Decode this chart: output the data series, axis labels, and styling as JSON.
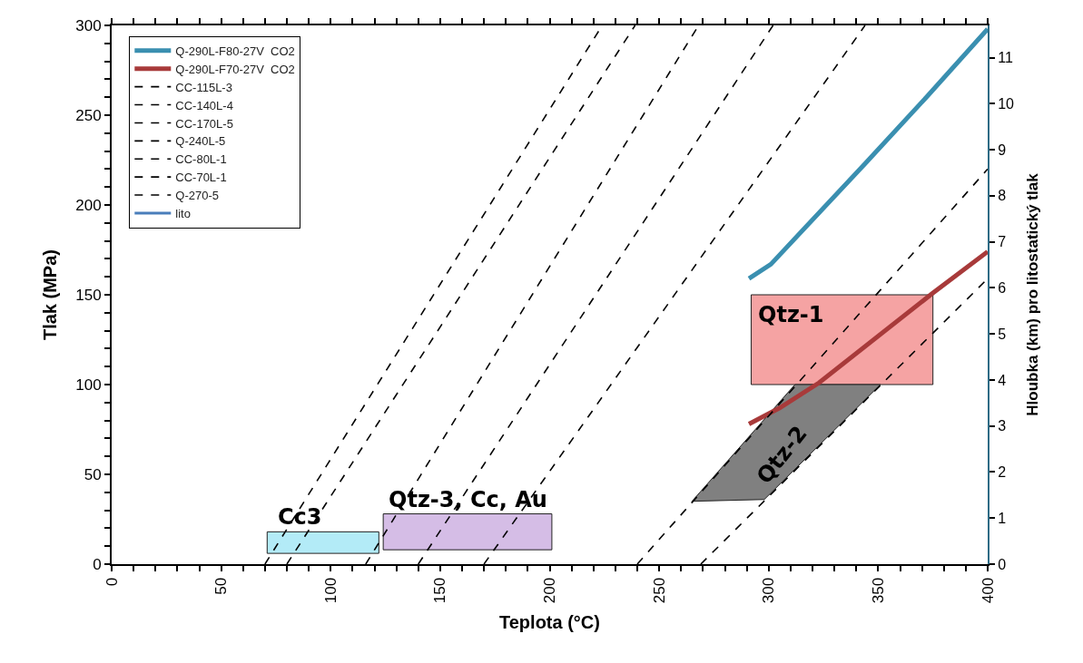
{
  "chart_data": {
    "type": "line",
    "xlabel": "Teplota (°C)",
    "ylabel": "Tlak (MPa)",
    "y2label": "Hloubka (km) pro litostatický tlak",
    "xlim": [
      0,
      400
    ],
    "ylim": [
      0,
      300
    ],
    "y2lim": [
      0,
      11.7
    ],
    "xticks": [
      0,
      {
        "value": 10,
        "label": null
      },
      {
        "value": 20,
        "label": null
      },
      {
        "value": 30,
        "label": null
      },
      {
        "value": 40,
        "label": null
      },
      50,
      {
        "value": 60,
        "label": null
      },
      {
        "value": 70,
        "label": null
      },
      {
        "value": 80,
        "label": null
      },
      {
        "value": 90,
        "label": null
      },
      100,
      {
        "value": 110,
        "label": null
      },
      {
        "value": 120,
        "label": null
      },
      {
        "value": 130,
        "label": null
      },
      {
        "value": 140,
        "label": null
      },
      150,
      {
        "value": 160,
        "label": null
      },
      {
        "value": 170,
        "label": null
      },
      {
        "value": 180,
        "label": null
      },
      {
        "value": 190,
        "label": null
      },
      200,
      {
        "value": 210,
        "label": null
      },
      {
        "value": 220,
        "label": null
      },
      {
        "value": 230,
        "label": null
      },
      {
        "value": 240,
        "label": null
      },
      250,
      {
        "value": 260,
        "label": null
      },
      {
        "value": 270,
        "label": null
      },
      {
        "value": 280,
        "label": null
      },
      {
        "value": 290,
        "label": null
      },
      300,
      {
        "value": 310,
        "label": null
      },
      {
        "value": 320,
        "label": null
      },
      {
        "value": 330,
        "label": null
      },
      {
        "value": 340,
        "label": null
      },
      350,
      {
        "value": 360,
        "label": null
      },
      {
        "value": 370,
        "label": null
      },
      {
        "value": 380,
        "label": null
      },
      {
        "value": 390,
        "label": null
      },
      400
    ],
    "yticks": [
      0,
      {
        "value": 10,
        "label": null
      },
      {
        "value": 20,
        "label": null
      },
      {
        "value": 30,
        "label": null
      },
      {
        "value": 40,
        "label": null
      },
      50,
      {
        "value": 60,
        "label": null
      },
      {
        "value": 70,
        "label": null
      },
      {
        "value": 80,
        "label": null
      },
      {
        "value": 90,
        "label": null
      },
      100,
      {
        "value": 110,
        "label": null
      },
      {
        "value": 120,
        "label": null
      },
      {
        "value": 130,
        "label": null
      },
      {
        "value": 140,
        "label": null
      },
      150,
      {
        "value": 160,
        "label": null
      },
      {
        "value": 170,
        "label": null
      },
      {
        "value": 180,
        "label": null
      },
      {
        "value": 190,
        "label": null
      },
      200,
      {
        "value": 210,
        "label": null
      },
      {
        "value": 220,
        "label": null
      },
      {
        "value": 230,
        "label": null
      },
      {
        "value": 240,
        "label": null
      },
      250,
      {
        "value": 260,
        "label": null
      },
      {
        "value": 270,
        "label": null
      },
      {
        "value": 280,
        "label": null
      },
      {
        "value": 290,
        "label": null
      },
      300
    ],
    "y2ticks": [
      0,
      1,
      2,
      3,
      4,
      5,
      6,
      7,
      8,
      9,
      10,
      11
    ],
    "legend": "top left",
    "series": [
      {
        "type": "area",
        "name": "Cc3",
        "color": "#b3ebf7",
        "x": [
          71,
          122,
          122,
          71,
          71
        ],
        "values": [
          6,
          6,
          18,
          18,
          6
        ]
      },
      {
        "type": "area",
        "name": "Qtz-3, Cc, Au",
        "color": "#d5bde6",
        "x": [
          124,
          201,
          201,
          124,
          124
        ],
        "values": [
          8,
          8,
          28,
          28,
          8
        ]
      },
      {
        "type": "area",
        "name": "Qtz-1",
        "color": "#f5a3a3",
        "x": [
          292,
          375,
          375,
          292,
          292
        ],
        "values": [
          100,
          100,
          150,
          150,
          100
        ]
      },
      {
        "type": "area",
        "name": "Qtz-2",
        "color": "#808080",
        "x": [
          265,
          298,
          351,
          312,
          265
        ],
        "values": [
          35,
          36,
          100,
          100,
          35
        ]
      },
      {
        "name": "Q-290L-F80-27V  CO2",
        "color": "#3a8fb0",
        "x": [
          291,
          301,
          344,
          372,
          400
        ],
        "values": [
          159,
          167,
          223,
          260,
          298
        ]
      },
      {
        "name": "Q-290L-F70-27V  CO2",
        "color": "#a83a3a",
        "x": [
          291,
          305,
          323,
          375,
          400
        ],
        "values": [
          78,
          87,
          101,
          151,
          174
        ]
      },
      {
        "name": "CC-115L-3",
        "color": "#000000",
        "line_style": "dashed",
        "x": [
          116,
          268
        ],
        "values": [
          0,
          300
        ]
      },
      {
        "name": "CC-140L-4",
        "color": "#000000",
        "line_style": "dashed",
        "x": [
          140,
          302
        ],
        "values": [
          0,
          300
        ]
      },
      {
        "name": "CC-170L-5",
        "color": "#000000",
        "line_style": "dashed",
        "x": [
          170,
          344
        ],
        "values": [
          0,
          300
        ]
      },
      {
        "name": "Q-240L-5",
        "color": "#000000",
        "line_style": "dashed",
        "x": [
          240,
          400
        ],
        "values": [
          0,
          220
        ]
      },
      {
        "name": "CC-80L-1",
        "color": "#000000",
        "line_style": "dashed",
        "x": [
          80,
          239
        ],
        "values": [
          0,
          300
        ]
      },
      {
        "name": "CC-70L-1",
        "color": "#000000",
        "line_style": "dashed",
        "x": [
          70,
          224
        ],
        "values": [
          0,
          300
        ]
      },
      {
        "name": "Q-270-5",
        "color": "#000000",
        "line_style": "dashed",
        "x": [
          269,
          400
        ],
        "values": [
          0,
          159
        ]
      },
      {
        "name": "lito",
        "color": "#4a7ebb",
        "axis": "y2",
        "values": [
          null
        ]
      }
    ]
  }
}
